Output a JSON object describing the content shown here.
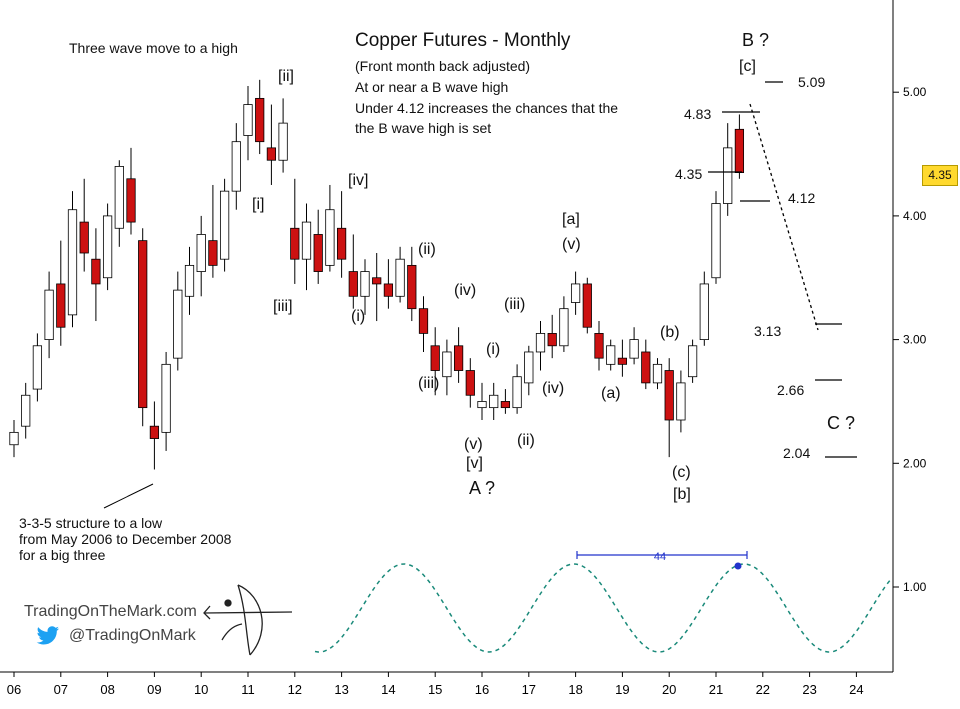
{
  "chart_data": {
    "type": "candlestick",
    "title": "Copper Futures - Monthly",
    "subtitle_lines": [
      "(Front month back adjusted)",
      "At or near a B wave high",
      "Under 4.12 increases the chances that the",
      "the B wave high is set"
    ],
    "x_ticks": [
      "06",
      "07",
      "08",
      "09",
      "10",
      "11",
      "12",
      "13",
      "14",
      "15",
      "16",
      "17",
      "18",
      "19",
      "20",
      "21",
      "22",
      "23",
      "24"
    ],
    "y_ticks": [
      "1.00",
      "2.00",
      "3.00",
      "4.00",
      "5.00"
    ],
    "ylim": [
      0.3,
      5.85
    ],
    "last_price": "4.35",
    "series": [
      {
        "ohlc": [
          [
            2006.0,
            2.15,
            2.35,
            2.05,
            2.25
          ],
          [
            2006.25,
            2.3,
            2.65,
            2.2,
            2.55
          ],
          [
            2006.5,
            2.6,
            3.05,
            2.5,
            2.95
          ],
          [
            2006.75,
            3.0,
            3.55,
            2.85,
            3.4
          ],
          [
            2007.0,
            3.45,
            3.8,
            2.95,
            3.1
          ],
          [
            2007.25,
            3.2,
            4.2,
            3.1,
            4.05
          ],
          [
            2007.5,
            3.95,
            4.3,
            3.55,
            3.7
          ],
          [
            2007.75,
            3.65,
            3.9,
            3.15,
            3.45
          ],
          [
            2008.0,
            3.5,
            4.1,
            3.4,
            4.0
          ],
          [
            2008.25,
            3.9,
            4.45,
            3.75,
            4.4
          ],
          [
            2008.5,
            4.3,
            4.55,
            3.85,
            3.95
          ],
          [
            2008.75,
            3.8,
            3.9,
            2.3,
            2.45
          ],
          [
            2009.0,
            2.3,
            2.5,
            1.95,
            2.2
          ],
          [
            2009.25,
            2.25,
            2.9,
            2.1,
            2.8
          ],
          [
            2009.5,
            2.85,
            3.55,
            2.75,
            3.4
          ],
          [
            2009.75,
            3.35,
            3.75,
            3.2,
            3.6
          ],
          [
            2010.0,
            3.55,
            4.0,
            3.35,
            3.85
          ],
          [
            2010.25,
            3.8,
            4.25,
            3.5,
            3.6
          ],
          [
            2010.5,
            3.65,
            4.3,
            3.55,
            4.2
          ],
          [
            2010.75,
            4.2,
            4.75,
            4.05,
            4.6
          ],
          [
            2011.0,
            4.65,
            5.05,
            4.45,
            4.9
          ],
          [
            2011.25,
            4.95,
            5.1,
            4.5,
            4.6
          ],
          [
            2011.5,
            4.55,
            4.9,
            4.25,
            4.45
          ],
          [
            2011.75,
            4.45,
            4.95,
            4.35,
            4.75
          ],
          [
            2012.0,
            3.9,
            4.3,
            3.45,
            3.65
          ],
          [
            2012.25,
            3.65,
            4.1,
            3.4,
            3.95
          ],
          [
            2012.5,
            3.85,
            4.05,
            3.45,
            3.55
          ],
          [
            2012.75,
            3.6,
            4.25,
            3.55,
            4.05
          ],
          [
            2013.0,
            3.9,
            4.2,
            3.5,
            3.65
          ],
          [
            2013.25,
            3.55,
            3.85,
            3.25,
            3.35
          ],
          [
            2013.5,
            3.35,
            3.65,
            3.2,
            3.55
          ],
          [
            2013.75,
            3.5,
            3.7,
            3.15,
            3.45
          ],
          [
            2014.0,
            3.45,
            3.65,
            3.25,
            3.35
          ],
          [
            2014.25,
            3.35,
            3.75,
            3.3,
            3.65
          ],
          [
            2014.5,
            3.6,
            3.75,
            3.15,
            3.25
          ],
          [
            2014.75,
            3.25,
            3.35,
            2.9,
            3.05
          ],
          [
            2015.0,
            2.95,
            3.1,
            2.55,
            2.75
          ],
          [
            2015.25,
            2.7,
            3.0,
            2.55,
            2.9
          ],
          [
            2015.5,
            2.95,
            3.1,
            2.65,
            2.75
          ],
          [
            2015.75,
            2.75,
            2.85,
            2.45,
            2.55
          ],
          [
            2016.0,
            2.45,
            2.65,
            2.35,
            2.5
          ],
          [
            2016.25,
            2.45,
            2.65,
            2.35,
            2.55
          ],
          [
            2016.5,
            2.5,
            2.6,
            2.4,
            2.45
          ],
          [
            2016.75,
            2.45,
            2.8,
            2.4,
            2.7
          ],
          [
            2017.0,
            2.65,
            2.95,
            2.55,
            2.9
          ],
          [
            2017.25,
            2.9,
            3.15,
            2.75,
            3.05
          ],
          [
            2017.5,
            3.05,
            3.2,
            2.85,
            2.95
          ],
          [
            2017.75,
            2.95,
            3.35,
            2.9,
            3.25
          ],
          [
            2018.0,
            3.3,
            3.55,
            3.2,
            3.45
          ],
          [
            2018.25,
            3.45,
            3.5,
            3.05,
            3.1
          ],
          [
            2018.5,
            3.05,
            3.15,
            2.75,
            2.85
          ],
          [
            2018.75,
            2.8,
            3.0,
            2.75,
            2.95
          ],
          [
            2019.0,
            2.85,
            3.0,
            2.7,
            2.8
          ],
          [
            2019.25,
            2.85,
            3.1,
            2.8,
            3.0
          ],
          [
            2019.5,
            2.9,
            3.0,
            2.6,
            2.65
          ],
          [
            2019.75,
            2.65,
            2.85,
            2.6,
            2.8
          ],
          [
            2020.0,
            2.75,
            2.85,
            2.05,
            2.35
          ],
          [
            2020.25,
            2.35,
            2.75,
            2.25,
            2.65
          ],
          [
            2020.5,
            2.7,
            3.0,
            2.65,
            2.95
          ],
          [
            2020.75,
            3.0,
            3.55,
            2.95,
            3.45
          ],
          [
            2021.0,
            3.5,
            4.2,
            3.45,
            4.1
          ],
          [
            2021.25,
            4.1,
            4.75,
            4.0,
            4.55
          ],
          [
            2021.5,
            4.7,
            4.82,
            4.3,
            4.35
          ]
        ]
      }
    ],
    "cycle_label": "44"
  },
  "labels": {
    "three_wave": "Three wave move to a high",
    "structure": [
      "3-3-5 structure to a low",
      "from May 2006 to December 2008",
      "for a big three"
    ],
    "level_509": "5.09",
    "level_483": "4.83",
    "level_435": "4.35",
    "level_412": "4.12",
    "level_313": "3.13",
    "level_266": "2.66",
    "level_204": "2.04",
    "brand_site": "TradingOnTheMark.com",
    "brand_handle": "@TradingOnMark"
  },
  "waves": {
    "w_ii_big": "[ii]",
    "w_i_big": "[i]",
    "w_iii_big": "[iii]",
    "w_iv_big": "[iv]",
    "w_i1": "(i)",
    "w_ii1": "(ii)",
    "w_iii1": "(iii)",
    "w_iv1": "(iv)",
    "w_v1": "(v)",
    "w_v_big": "[v]",
    "w_A": "A ?",
    "w_i2": "(i)",
    "w_ii2": "(ii)",
    "w_iii2": "(iii)",
    "w_iv2": "(iv)",
    "w_v2": "(v)",
    "w_a_big": "[a]",
    "w_a": "(a)",
    "w_b": "(b)",
    "w_c": "(c)",
    "w_b_big": "[b]",
    "w_c_big": "[c]",
    "w_B": "B ?",
    "w_C": "C ?"
  },
  "colors": {
    "down": "#cc1111",
    "up": "#ffffff",
    "cycle": "#1a8a7a",
    "projection": "#000000",
    "badge": "#ffd92e",
    "blue": "#2233cc"
  },
  "icons": [
    "twitter-icon",
    "archer-logo-icon"
  ]
}
